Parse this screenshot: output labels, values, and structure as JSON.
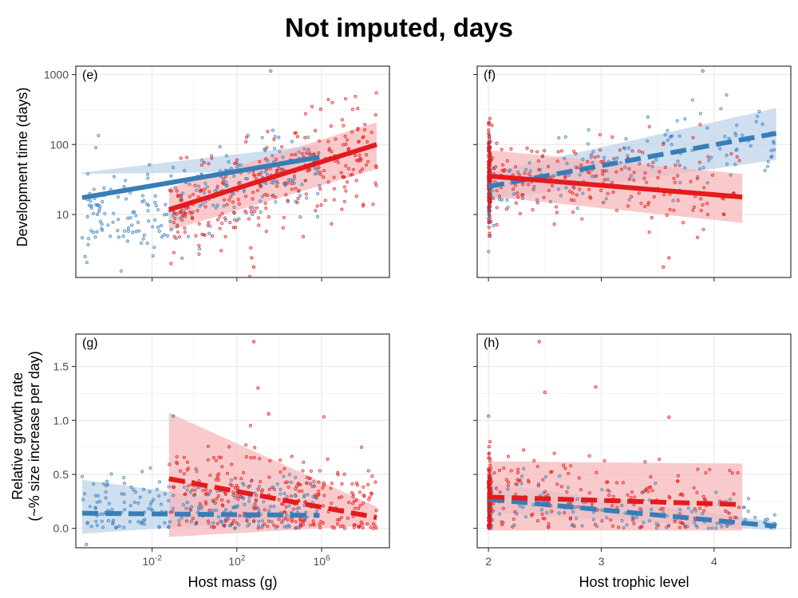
{
  "figure": {
    "title": "Not imputed, days",
    "colors": {
      "blue": "#377eb8",
      "red": "#e41a1c",
      "blue_band": "#bcd3ea",
      "red_band": "#f7b6b7",
      "grid": "#ebebeb",
      "frame": "#333333"
    }
  },
  "chart_data": [
    {
      "id": "e",
      "type": "scatter",
      "panel_label": "(e)",
      "xlabel": "",
      "ylabel": "Development time (days)",
      "xscale": "log10",
      "yscale": "log10",
      "xlim": [
        -5.6,
        9.2
      ],
      "ylim": [
        0.1,
        3.12
      ],
      "xticks": [
        -2,
        2,
        6
      ],
      "xtick_labels": [
        "10-2",
        "102",
        "106"
      ],
      "xtick_labels_shown": false,
      "yticks": [
        1,
        2,
        3
      ],
      "ytick_labels": [
        "10",
        "100",
        "1000"
      ],
      "grid": true,
      "series": [
        {
          "color": "blue",
          "points_seed": 11,
          "points_n": 260,
          "x_range": [
            -5.3,
            5.9
          ],
          "point_line": {
            "a": 1.25,
            "b": 0.065
          },
          "point_sd": 0.33,
          "outliers": [
            [
              3.6,
              3.05
            ]
          ],
          "fit": {
            "x": [
              -5.3,
              5.9
            ],
            "y": [
              1.24,
              1.82
            ]
          },
          "band_lower": [
            1.58,
            1.62
          ],
          "band_upper": [
            1.6,
            2.0
          ],
          "line_style": "solid"
        },
        {
          "color": "red",
          "points_seed": 23,
          "points_n": 300,
          "x_range": [
            -1.2,
            8.6
          ],
          "point_line": {
            "a": 1.14,
            "b": 0.094
          },
          "point_sd": 0.35,
          "outliers": [
            [
              2.8,
              0.25
            ],
            [
              2.7,
              0.38
            ]
          ],
          "fit": {
            "x": [
              -1.2,
              8.6
            ],
            "y": [
              1.07,
              2.0
            ]
          },
          "band_lower": [
            0.77,
            1.65
          ],
          "band_upper": [
            1.38,
            2.32
          ],
          "line_style": "solid"
        }
      ]
    },
    {
      "id": "f",
      "type": "scatter",
      "panel_label": "(f)",
      "xlabel": "",
      "ylabel": "",
      "xscale": "linear",
      "yscale": "log10",
      "xlim": [
        1.9,
        4.68
      ],
      "ylim": [
        0.1,
        3.12
      ],
      "xticks": [
        2,
        3,
        4
      ],
      "xtick_labels": [
        "2",
        "3",
        "4"
      ],
      "xtick_labels_shown": false,
      "yticks": [
        1,
        2,
        3
      ],
      "ytick_labels": [
        "10",
        "100",
        "1000"
      ],
      "ytick_labels_shown": false,
      "grid": true,
      "series": [
        {
          "color": "blue",
          "points_seed": 37,
          "points_n": 220,
          "x_range": [
            2.0,
            4.55
          ],
          "point_line": {
            "a": 1.4,
            "b": 0.28
          },
          "point_sd": 0.3,
          "x_mass_at_min": 0.45,
          "outliers": [
            [
              3.9,
              3.05
            ]
          ],
          "fit": {
            "x": [
              2.0,
              4.55
            ],
            "y": [
              1.4,
              2.16
            ]
          },
          "band_lower": [
            1.2,
            1.78
          ],
          "band_upper": [
            1.6,
            2.52
          ],
          "line_style": "dashed"
        },
        {
          "color": "red",
          "points_seed": 53,
          "points_n": 300,
          "x_range": [
            2.0,
            4.25
          ],
          "point_line": {
            "a": 1.57,
            "b": -0.1
          },
          "point_sd": 0.33,
          "x_mass_at_min": 0.4,
          "outliers": [
            [
              3.55,
              0.25
            ],
            [
              3.6,
              0.38
            ]
          ],
          "fit": {
            "x": [
              2.0,
              4.25
            ],
            "y": [
              1.55,
              1.25
            ]
          },
          "band_lower": [
            1.26,
            0.88
          ],
          "band_upper": [
            1.92,
            1.58
          ],
          "line_style": "solid"
        }
      ]
    },
    {
      "id": "g",
      "type": "scatter",
      "panel_label": "(g)",
      "xlabel": "Host mass (g)",
      "ylabel": "Relative growth rate\n(~% size increase per day)",
      "xscale": "log10",
      "yscale": "linear",
      "xlim": [
        -5.6,
        9.2
      ],
      "ylim": [
        -0.18,
        1.8
      ],
      "xticks": [
        -2,
        2,
        6
      ],
      "xtick_labels": [
        "10-2",
        "102",
        "106"
      ],
      "xtick_labels_shown": true,
      "yticks": [
        0,
        0.5,
        1,
        1.5
      ],
      "ytick_labels": [
        "0.0",
        "0.5",
        "1.0",
        "1.5"
      ],
      "grid": true,
      "series": [
        {
          "color": "blue",
          "points_seed": 71,
          "points_n": 240,
          "x_range": [
            -5.3,
            5.9
          ],
          "point_line": {
            "a": 0.2,
            "b": 0.0
          },
          "point_sd": 0.16,
          "outliers": [
            [
              -5.1,
              -0.15
            ],
            [
              -1.0,
              1.04
            ]
          ],
          "fit": {
            "x": [
              -5.3,
              5.9
            ],
            "y": [
              0.14,
              0.12
            ]
          },
          "band_lower": [
            -0.05,
            0.1
          ],
          "band_upper": [
            0.45,
            0.15
          ],
          "line_style": "dashed"
        },
        {
          "color": "red",
          "points_seed": 89,
          "points_n": 280,
          "x_range": [
            -1.2,
            8.6
          ],
          "point_line": {
            "a": 0.34,
            "b": -0.02
          },
          "point_sd": 0.22,
          "outliers": [
            [
              2.8,
              1.73
            ],
            [
              3.0,
              1.3
            ],
            [
              3.5,
              1.06
            ]
          ],
          "fit": {
            "x": [
              -1.2,
              8.6
            ],
            "y": [
              0.46,
              0.1
            ]
          },
          "band_lower": [
            -0.08,
            0.03
          ],
          "band_upper": [
            1.07,
            0.2
          ],
          "line_style": "dashed"
        }
      ]
    },
    {
      "id": "h",
      "type": "scatter",
      "panel_label": "(h)",
      "xlabel": "Host trophic level",
      "ylabel": "",
      "xscale": "linear",
      "yscale": "linear",
      "xlim": [
        1.9,
        4.68
      ],
      "ylim": [
        -0.18,
        1.8
      ],
      "xticks": [
        2,
        3,
        4
      ],
      "xtick_labels": [
        "2",
        "3",
        "4"
      ],
      "xtick_labels_shown": true,
      "yticks": [
        0,
        0.5,
        1,
        1.5
      ],
      "ytick_labels": [
        "0.0",
        "0.5",
        "1.0",
        "1.5"
      ],
      "ytick_labels_shown": false,
      "grid": true,
      "series": [
        {
          "color": "blue",
          "points_seed": 101,
          "points_n": 220,
          "x_range": [
            2.0,
            4.55
          ],
          "point_line": {
            "a": 0.26,
            "b": -0.09
          },
          "point_sd": 0.14,
          "x_mass_at_min": 0.45,
          "outliers": [
            [
              2.0,
              1.04
            ]
          ],
          "fit": {
            "x": [
              2.0,
              4.55
            ],
            "y": [
              0.27,
              0.02
            ]
          },
          "band_lower": [
            0.15,
            -0.02
          ],
          "band_upper": [
            0.42,
            0.06
          ],
          "line_style": "dashed"
        },
        {
          "color": "red",
          "points_seed": 131,
          "points_n": 280,
          "x_range": [
            2.0,
            4.25
          ],
          "point_line": {
            "a": 0.31,
            "b": -0.03
          },
          "point_sd": 0.22,
          "x_mass_at_min": 0.4,
          "outliers": [
            [
              2.45,
              1.73
            ],
            [
              2.5,
              1.26
            ],
            [
              2.95,
              1.31
            ],
            [
              3.6,
              1.03
            ]
          ],
          "fit": {
            "x": [
              2.0,
              4.25
            ],
            "y": [
              0.29,
              0.22
            ]
          },
          "band_lower": [
            -0.02,
            -0.02
          ],
          "band_upper": [
            0.62,
            0.6
          ],
          "line_style": "dashed"
        }
      ]
    }
  ]
}
